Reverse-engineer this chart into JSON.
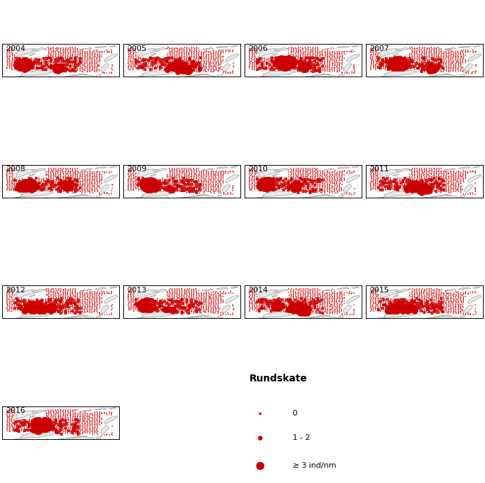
{
  "years": [
    2004,
    2005,
    2006,
    2007,
    2008,
    2009,
    2010,
    2011,
    2012,
    2013,
    2014,
    2015,
    2016
  ],
  "title": "Rundskate",
  "legend_labels": [
    "0",
    "1 - 2",
    "≥ 3 ind/nm"
  ],
  "dot_color": "#cc0000",
  "coastline_color": "#aaaaaa",
  "background_color": "#ffffff",
  "xlim": [
    10,
    58
  ],
  "ylim": [
    68.5,
    82
  ],
  "year_fontsize": 8,
  "legend_title_fontsize": 10,
  "legend_fontsize": 8
}
